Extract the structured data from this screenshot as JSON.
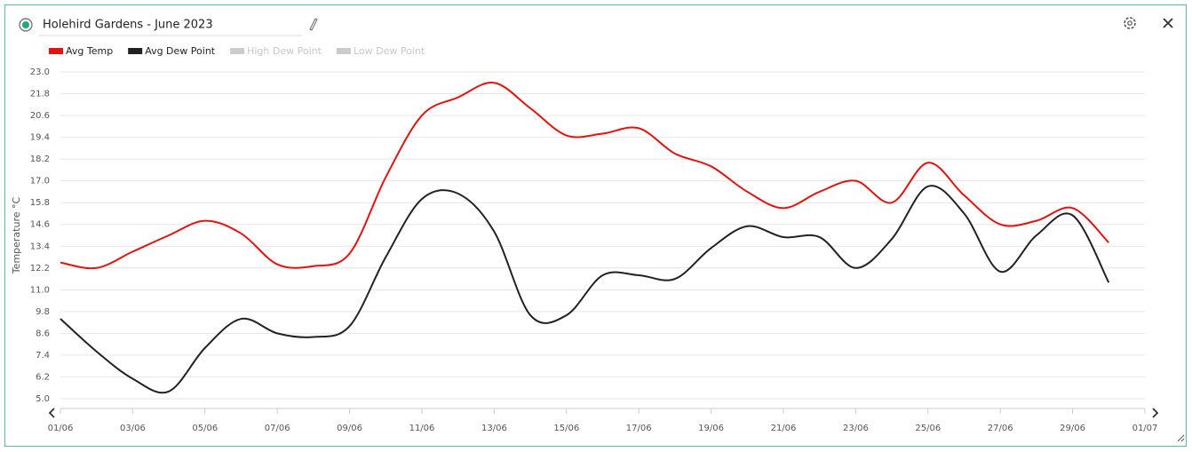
{
  "chart_data": {
    "type": "line",
    "title": "Holehird Gardens - June 2023",
    "ylabel": "Temperature °C",
    "categories": [
      "01/06",
      null,
      "03/06",
      null,
      "05/06",
      null,
      "07/06",
      null,
      "09/06",
      null,
      "11/06",
      null,
      "13/06",
      null,
      "15/06",
      null,
      "17/06",
      null,
      "19/06",
      null,
      "21/06",
      null,
      "23/06",
      null,
      "25/06",
      null,
      "27/06",
      null,
      "29/06",
      null,
      "01/07"
    ],
    "series": [
      {
        "name": "Avg Temp",
        "color": "#e3140f",
        "visible": true,
        "values": [
          12.5,
          12.2,
          13.1,
          14.0,
          14.8,
          14.1,
          12.4,
          12.3,
          13.0,
          17.2,
          20.6,
          21.6,
          22.4,
          21.0,
          19.5,
          19.6,
          19.9,
          18.5,
          17.8,
          16.4,
          15.5,
          16.4,
          17.0,
          15.8,
          18.0,
          16.2,
          14.6,
          14.8,
          15.5,
          13.6,
          null
        ]
      },
      {
        "name": "Avg Dew Point",
        "color": "#222222",
        "visible": true,
        "values": [
          9.4,
          7.6,
          6.1,
          5.4,
          7.8,
          9.4,
          8.6,
          8.4,
          9.0,
          12.8,
          16.0,
          16.3,
          14.2,
          9.6,
          9.6,
          11.8,
          11.8,
          11.6,
          13.3,
          14.5,
          13.9,
          13.9,
          12.2,
          13.8,
          16.7,
          15.2,
          12.0,
          14.0,
          15.1,
          11.4,
          null
        ]
      },
      {
        "name": "High Dew Point",
        "color": "#cccccc",
        "visible": false,
        "values": [
          null,
          null,
          null,
          null,
          null,
          null,
          null,
          null,
          null,
          null,
          null,
          null,
          null,
          null,
          null,
          null,
          null,
          null,
          null,
          null,
          null,
          null,
          null,
          null,
          null,
          null,
          null,
          null,
          null,
          null,
          null
        ]
      },
      {
        "name": "Low Dew Point",
        "color": "#cccccc",
        "visible": false,
        "values": [
          null,
          null,
          null,
          null,
          null,
          null,
          null,
          null,
          null,
          null,
          null,
          null,
          null,
          null,
          null,
          null,
          null,
          null,
          null,
          null,
          null,
          null,
          null,
          null,
          null,
          null,
          null,
          null,
          null,
          null,
          null
        ]
      }
    ],
    "ylim": [
      5.0,
      23.0
    ],
    "yticks": [
      {
        "value": 5,
        "label": "5.0"
      },
      6.2,
      7.4,
      8.6,
      9.8,
      {
        "value": 11,
        "label": "11.0"
      },
      12.2,
      13.4,
      14.6,
      15.8,
      {
        "value": 17,
        "label": "17.0"
      },
      18.2,
      19.4,
      20.6,
      21.8,
      {
        "value": 23,
        "label": "23.0"
      }
    ],
    "grid": true
  }
}
